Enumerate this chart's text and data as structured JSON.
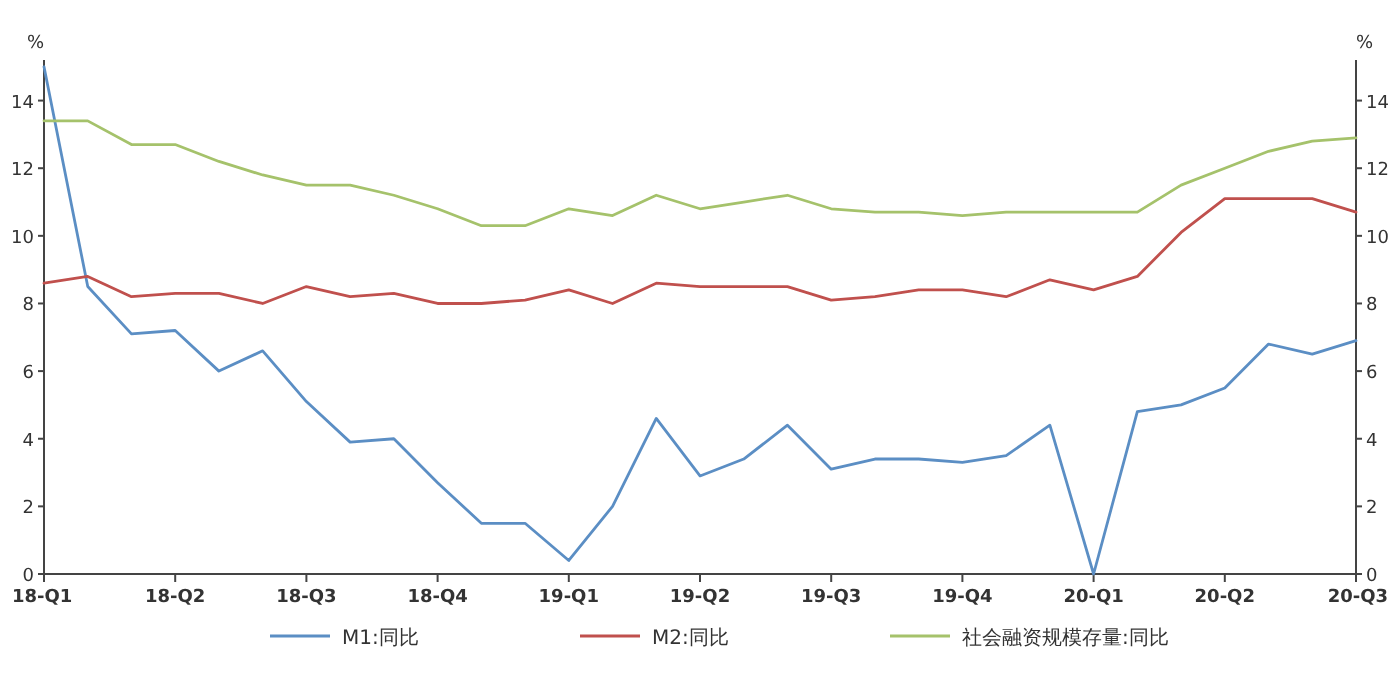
{
  "chart_data": {
    "type": "line",
    "ylabel": "%",
    "y2label": "%",
    "categories": [
      "18-Q1",
      null,
      null,
      "18-Q2",
      null,
      null,
      "18-Q3",
      null,
      null,
      "18-Q4",
      null,
      null,
      "19-Q1",
      null,
      null,
      "19-Q2",
      null,
      null,
      "19-Q3",
      null,
      null,
      "19-Q4",
      null,
      null,
      "20-Q1",
      null,
      null,
      "20-Q2",
      null,
      null,
      "20-Q3"
    ],
    "series": [
      {
        "name": "M1:同比",
        "color": "#5b8ec4",
        "values": [
          15.0,
          8.5,
          7.1,
          7.2,
          6.0,
          6.6,
          5.1,
          3.9,
          4.0,
          2.7,
          1.5,
          1.5,
          0.4,
          2.0,
          4.6,
          2.9,
          3.4,
          4.4,
          3.1,
          3.4,
          3.4,
          3.3,
          3.5,
          4.4,
          0.0,
          4.8,
          5.0,
          5.5,
          6.8,
          6.5,
          6.9
        ]
      },
      {
        "name": "M2:同比",
        "color": "#c0504d",
        "values": [
          8.6,
          8.8,
          8.2,
          8.3,
          8.3,
          8.0,
          8.5,
          8.2,
          8.3,
          8.0,
          8.0,
          8.1,
          8.4,
          8.0,
          8.6,
          8.5,
          8.5,
          8.5,
          8.1,
          8.2,
          8.4,
          8.4,
          8.2,
          8.7,
          8.4,
          8.8,
          10.1,
          11.1,
          11.1,
          11.1,
          10.7
        ]
      },
      {
        "name": "社会融资规模存量:同比",
        "color": "#a5c26b",
        "values": [
          13.4,
          13.4,
          12.7,
          12.7,
          12.2,
          11.8,
          11.5,
          11.5,
          11.2,
          10.8,
          10.3,
          10.3,
          10.8,
          10.6,
          11.2,
          10.8,
          11.0,
          11.2,
          10.8,
          10.7,
          10.7,
          10.6,
          10.7,
          10.7,
          10.7,
          10.7,
          11.5,
          12.0,
          12.5,
          12.8,
          12.9
        ]
      }
    ],
    "ylim": [
      0,
      15.2
    ],
    "yticks": [
      0,
      2,
      4,
      6,
      8,
      10,
      12,
      14
    ],
    "y2lim": [
      0,
      15.2
    ],
    "y2ticks": [
      0,
      2,
      4,
      6,
      8,
      10,
      12,
      14
    ],
    "legend": "bottom"
  }
}
